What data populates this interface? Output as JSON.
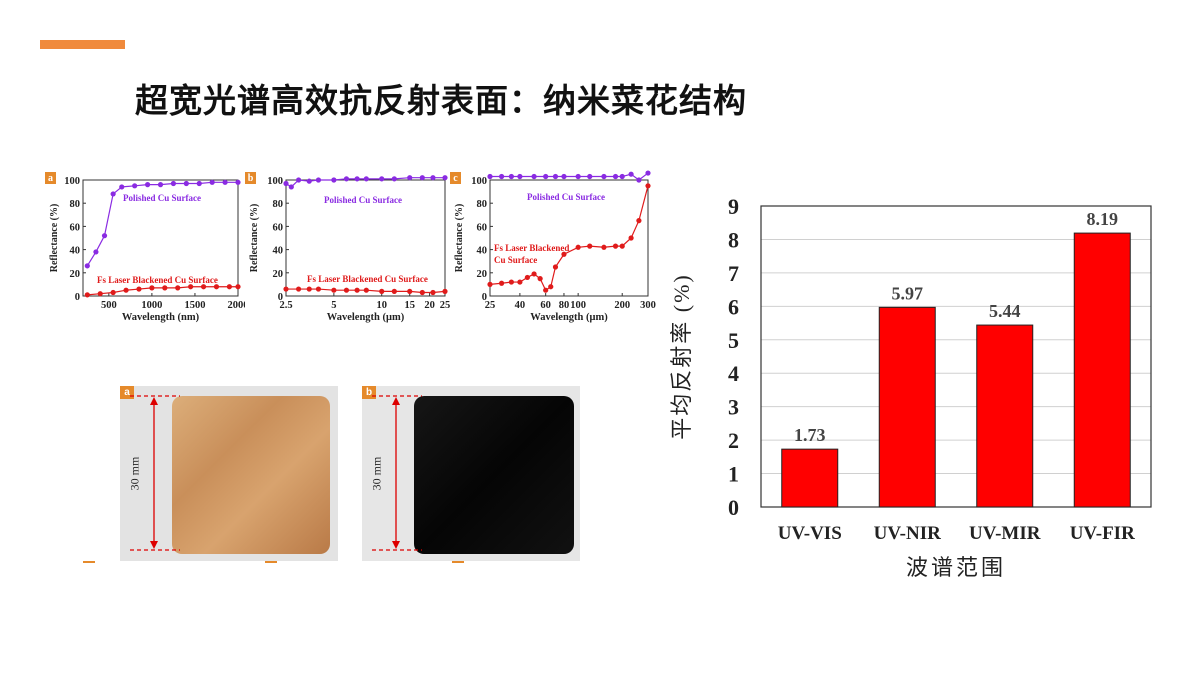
{
  "slide": {
    "title": "超宽光谱高效抗反射表面：纳米菜花结构",
    "accent_color": "#f08a3c"
  },
  "photos": {
    "a": {
      "label": "a",
      "dimension": "30 mm",
      "surface": "copper"
    },
    "b": {
      "label": "b",
      "dimension": "30 mm",
      "surface": "black"
    }
  },
  "chart_data": [
    {
      "type": "line",
      "panel_label": "a",
      "xlabel": "Wavelength (nm)",
      "ylabel": "Reflectance (%)",
      "xlim": [
        200,
        2000
      ],
      "ylim": [
        0,
        100
      ],
      "xticks": [
        "500",
        "1000",
        "1500",
        "2000"
      ],
      "yticks": [
        "0",
        "20",
        "40",
        "60",
        "80",
        "100"
      ],
      "series": [
        {
          "name": "Polished Cu Surface",
          "color": "#8a2be2",
          "x": [
            250,
            350,
            450,
            550,
            650,
            800,
            950,
            1100,
            1250,
            1400,
            1550,
            1700,
            1850,
            2000
          ],
          "y": [
            26,
            38,
            52,
            88,
            94,
            95,
            96,
            96,
            97,
            97,
            97,
            98,
            98,
            98
          ]
        },
        {
          "name": "Fs Laser Blackened Cu Surface",
          "color": "#e01b1b",
          "x": [
            250,
            400,
            550,
            700,
            850,
            1000,
            1150,
            1300,
            1450,
            1600,
            1750,
            1900,
            2000
          ],
          "y": [
            1,
            2,
            3,
            5,
            6,
            7,
            7,
            7,
            8,
            8,
            8,
            8,
            8
          ]
        }
      ]
    },
    {
      "type": "line",
      "panel_label": "b",
      "xlabel": "Wavelength (μm)",
      "ylabel": "Reflectance (%)",
      "xscale": "log",
      "xlim": [
        2.5,
        25
      ],
      "ylim": [
        0,
        100
      ],
      "xticks": [
        "2.5",
        "5",
        "10",
        "15",
        "20",
        "25"
      ],
      "yticks": [
        "0",
        "20",
        "40",
        "60",
        "80",
        "100"
      ],
      "series": [
        {
          "name": "Polished Cu Surface",
          "color": "#8a2be2",
          "x": [
            2.5,
            2.7,
            3,
            3.5,
            4,
            5,
            6,
            7,
            8,
            10,
            12,
            15,
            18,
            21,
            25
          ],
          "y": [
            97,
            94,
            100,
            99,
            100,
            100,
            101,
            101,
            101,
            101,
            101,
            102,
            102,
            102,
            102
          ]
        },
        {
          "name": "Fs Laser Blackened Cu Surface",
          "color": "#e01b1b",
          "x": [
            2.5,
            3,
            3.5,
            4,
            5,
            6,
            7,
            8,
            10,
            12,
            15,
            18,
            21,
            25
          ],
          "y": [
            6,
            6,
            6,
            6,
            5,
            5,
            5,
            5,
            4,
            4,
            4,
            3,
            3,
            4
          ]
        }
      ]
    },
    {
      "type": "line",
      "panel_label": "c",
      "xlabel": "Wavelength (μm)",
      "ylabel": "Reflectance (%)",
      "xscale": "log",
      "xlim": [
        25,
        300
      ],
      "ylim": [
        0,
        100
      ],
      "xticks": [
        "25",
        "40",
        "60",
        "80",
        "100",
        "200",
        "300"
      ],
      "yticks": [
        "0",
        "20",
        "40",
        "60",
        "80",
        "100"
      ],
      "series": [
        {
          "name": "Polished Cu Surface",
          "color": "#8a2be2",
          "x": [
            25,
            30,
            35,
            40,
            50,
            60,
            70,
            80,
            100,
            120,
            150,
            180,
            200,
            230,
            260,
            300
          ],
          "y": [
            103,
            103,
            103,
            103,
            103,
            103,
            103,
            103,
            103,
            103,
            103,
            103,
            103,
            105,
            100,
            106
          ]
        },
        {
          "name": "Fs Laser Blackened Cu Surface",
          "color": "#e01b1b",
          "x": [
            25,
            30,
            35,
            40,
            45,
            50,
            55,
            60,
            65,
            70,
            80,
            100,
            120,
            150,
            180,
            200,
            230,
            260,
            300
          ],
          "y": [
            10,
            11,
            12,
            12,
            16,
            19,
            15,
            5,
            8,
            25,
            36,
            42,
            43,
            42,
            43,
            43,
            50,
            65,
            95
          ]
        }
      ],
      "annotations": [
        "Polished Cu Surface",
        "Fs Laser Blackened",
        "Cu Surface"
      ]
    },
    {
      "type": "bar",
      "categories": [
        "UV-VIS",
        "UV-NIR",
        "UV-MIR",
        "UV-FIR"
      ],
      "values": [
        1.73,
        5.97,
        5.44,
        8.19
      ],
      "value_labels": [
        "1.73",
        "5.97",
        "5.44",
        "8.19"
      ],
      "xlabel": "波谱范围",
      "ylabel": "平均反射率 (%)",
      "ylim": [
        0,
        9
      ],
      "yticks": [
        "0",
        "1",
        "2",
        "3",
        "4",
        "5",
        "6",
        "7",
        "8",
        "9"
      ],
      "bar_color": "#ff0000",
      "grid": true
    }
  ]
}
